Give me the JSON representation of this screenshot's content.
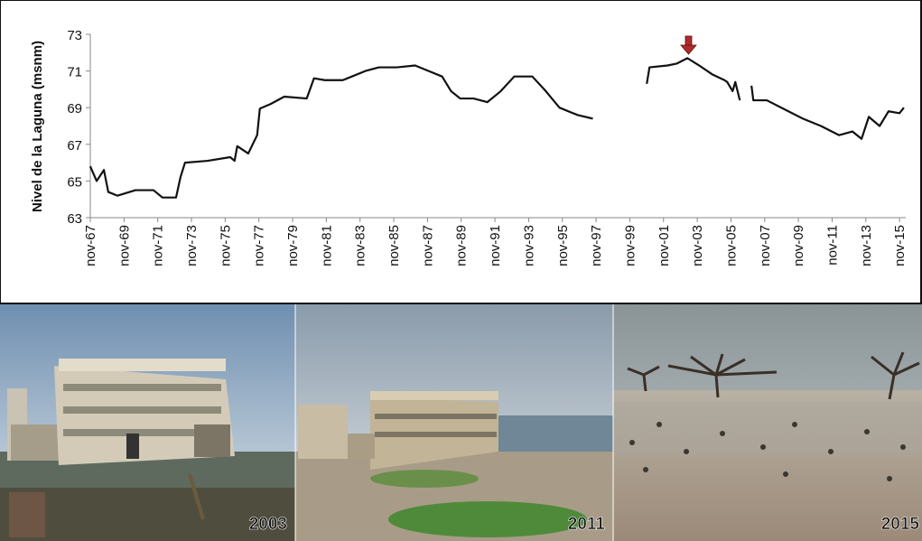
{
  "chart_data": {
    "type": "line",
    "ylabel": "Nivel de la Laguna (msnm)",
    "x": [
      1967.83,
      1968.21,
      1968.64,
      1968.9,
      1969.44,
      1970.51,
      1971.58,
      1972.11,
      1972.92,
      1973.18,
      1973.45,
      1974.79,
      1976.13,
      1976.39,
      1976.55,
      1977.2,
      1977.73,
      1977.89,
      1978.53,
      1979.34,
      1980.67,
      1981.1,
      1981.74,
      1982.81,
      1983.35,
      1984.15,
      1984.95,
      1986.02,
      1987.1,
      1987.9,
      1988.7,
      1989.23,
      1989.77,
      1990.57,
      1991.38,
      1992.18,
      1992.98,
      1994.05,
      1994.85,
      1995.66,
      1996.73,
      1997.64,
      1999.0,
      2000.84,
      2001.0,
      2002.07,
      2002.61,
      2003.25,
      2003.95,
      2004.75,
      2005.45,
      2005.61,
      2005.93,
      2006.09,
      2006.36,
      2006.5,
      2007.05,
      2007.16,
      2007.96,
      2009.03,
      2010.1,
      2011.17,
      2012.24,
      2013.04,
      2013.58,
      2014.01,
      2014.65,
      2015.18,
      2015.83,
      2016.09
    ],
    "series": [
      {
        "color": "#111111",
        "values": [
          65.8,
          65.0,
          65.6,
          64.4,
          64.2,
          64.5,
          64.5,
          64.1,
          64.1,
          65.2,
          66.0,
          66.1,
          66.3,
          66.1,
          66.9,
          66.5,
          67.5,
          68.95,
          69.2,
          69.6,
          69.5,
          70.6,
          70.5,
          70.5,
          70.7,
          71.0,
          71.2,
          71.2,
          71.3,
          71.0,
          70.7,
          69.9,
          69.5,
          69.5,
          69.3,
          69.9,
          70.7,
          70.7,
          69.9,
          69.0,
          68.6,
          68.4,
          null,
          70.3,
          71.2,
          71.3,
          71.4,
          71.7,
          71.3,
          70.8,
          70.5,
          70.4,
          69.9,
          70.4,
          69.4,
          null,
          70.2,
          69.4,
          69.4,
          68.9,
          68.4,
          68.0,
          67.5,
          67.7,
          67.3,
          68.5,
          68.0,
          68.8,
          68.7,
          69.0
        ]
      }
    ],
    "xlim": [
      1967.833,
      2016.2
    ],
    "xticks": [
      {
        "value": 1967.833,
        "label": "nov-67"
      },
      {
        "value": 1969.833,
        "label": "nov-69"
      },
      {
        "value": 1971.833,
        "label": "nov-71"
      },
      {
        "value": 1973.833,
        "label": "nov-73"
      },
      {
        "value": 1975.833,
        "label": "nov-75"
      },
      {
        "value": 1977.833,
        "label": "nov-77"
      },
      {
        "value": 1979.833,
        "label": "nov-79"
      },
      {
        "value": 1981.833,
        "label": "nov-81"
      },
      {
        "value": 1983.833,
        "label": "nov-83"
      },
      {
        "value": 1985.833,
        "label": "nov-85"
      },
      {
        "value": 1987.833,
        "label": "nov-87"
      },
      {
        "value": 1989.833,
        "label": "nov-89"
      },
      {
        "value": 1991.833,
        "label": "nov-91"
      },
      {
        "value": 1993.833,
        "label": "nov-93"
      },
      {
        "value": 1995.833,
        "label": "nov-95"
      },
      {
        "value": 1997.833,
        "label": "nov-97"
      },
      {
        "value": 1999.833,
        "label": "nov-99"
      },
      {
        "value": 2001.833,
        "label": "nov-01"
      },
      {
        "value": 2003.833,
        "label": "nov-03"
      },
      {
        "value": 2005.833,
        "label": "nov-05"
      },
      {
        "value": 2007.833,
        "label": "nov-07"
      },
      {
        "value": 2009.833,
        "label": "nov-09"
      },
      {
        "value": 2011.833,
        "label": "nov-11"
      },
      {
        "value": 2013.833,
        "label": "nov-13"
      },
      {
        "value": 2015.833,
        "label": "nov-15"
      }
    ],
    "ylim": [
      63,
      73
    ],
    "yticks": [
      63,
      65,
      67,
      69,
      71,
      73
    ],
    "grid": false
  },
  "photos": [
    {
      "year": "2003"
    },
    {
      "year": "2011"
    },
    {
      "year": "2015"
    }
  ]
}
